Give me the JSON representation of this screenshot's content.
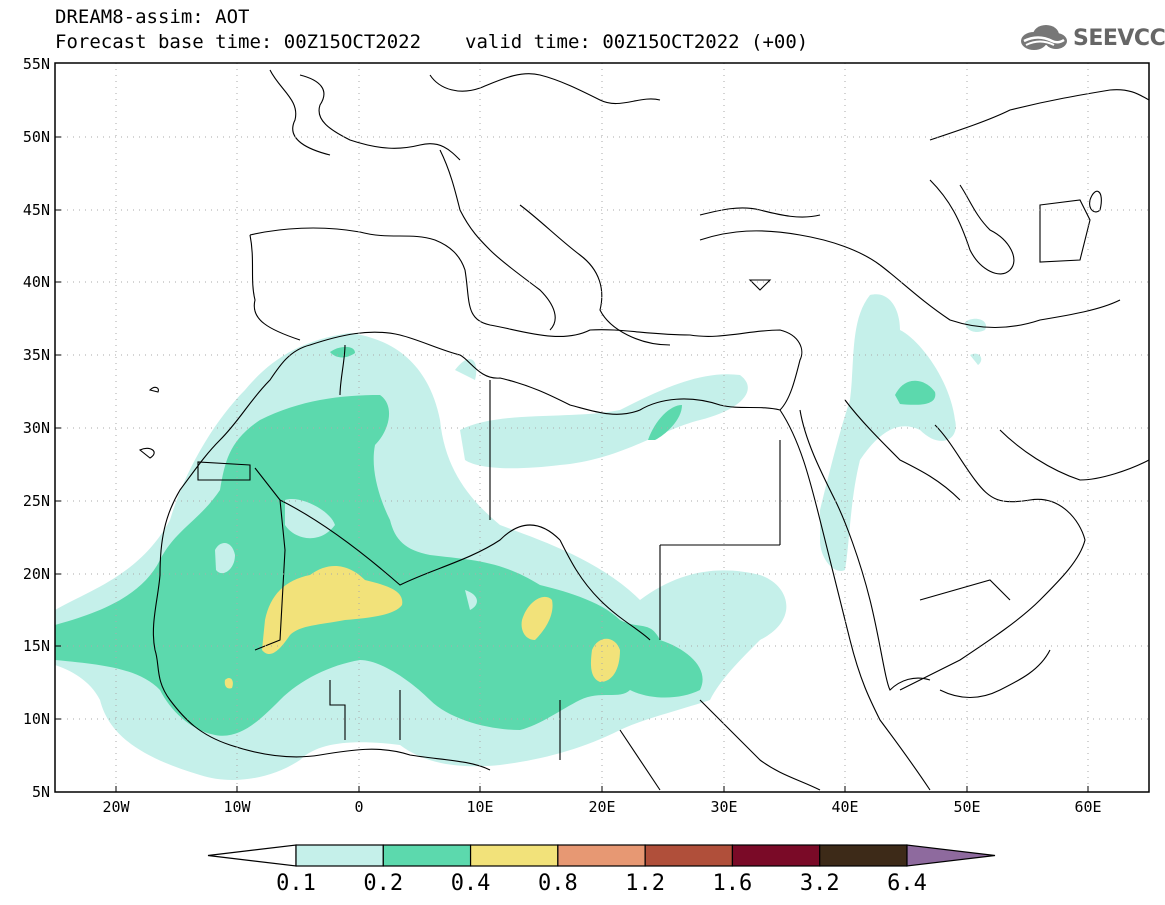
{
  "header": {
    "title_line1": "DREAM8-assim: AOT",
    "base_time": "Forecast base time: 00Z15OCT2022",
    "valid_time": "valid time: 00Z15OCT2022 (+00)"
  },
  "logo": {
    "text": "SEEVCCC",
    "icon": "cloud-icon"
  },
  "map": {
    "lon_range": [
      -25,
      65
    ],
    "lat_range": [
      5,
      55
    ],
    "lat_labels": [
      "5N",
      "10N",
      "15N",
      "20N",
      "25N",
      "30N",
      "35N",
      "40N",
      "45N",
      "50N",
      "55N"
    ],
    "lon_labels": [
      "20W",
      "10W",
      "0",
      "10E",
      "20E",
      "30E",
      "40E",
      "50E",
      "60E"
    ]
  },
  "legend": {
    "colors": [
      "#ffffff",
      "#c5f0ea",
      "#5cd9ad",
      "#f2e27a",
      "#e79873",
      "#b04f3a",
      "#7a0a27",
      "#3d2a18",
      "#8e6a9e"
    ],
    "labels": [
      "0.1",
      "0.2",
      "0.4",
      "0.8",
      "1.2",
      "1.6",
      "3.2",
      "6.4"
    ]
  }
}
